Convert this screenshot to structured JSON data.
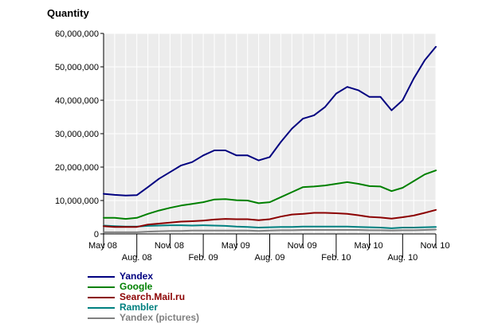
{
  "chart_data": {
    "type": "line",
    "ylabel": "Quantity",
    "xlabel": "",
    "title": "",
    "ylim": [
      0,
      60000000
    ],
    "yticks": [
      {
        "value": 0,
        "label": "0"
      },
      {
        "value": 10000000,
        "label": "10,000,000"
      },
      {
        "value": 20000000,
        "label": "20,000,000"
      },
      {
        "value": 30000000,
        "label": "30,000,000"
      },
      {
        "value": 40000000,
        "label": "40,000,000"
      },
      {
        "value": 50000000,
        "label": "50,000,000"
      },
      {
        "value": 60000000,
        "label": "60,000,000"
      }
    ],
    "xlim": [
      0,
      30
    ],
    "xticks": [
      {
        "value": 0,
        "label": "May 08",
        "row": 1
      },
      {
        "value": 3,
        "label": "Aug. 08",
        "row": 2
      },
      {
        "value": 6,
        "label": "Nov. 08",
        "row": 1
      },
      {
        "value": 9,
        "label": "Feb. 09",
        "row": 2
      },
      {
        "value": 12,
        "label": "May 09",
        "row": 1
      },
      {
        "value": 15,
        "label": "Aug. 09",
        "row": 2
      },
      {
        "value": 18,
        "label": "Nov. 09",
        "row": 1
      },
      {
        "value": 21,
        "label": "Feb. 10",
        "row": 2
      },
      {
        "value": 24,
        "label": "May 10",
        "row": 1
      },
      {
        "value": 27,
        "label": "Aug. 10",
        "row": 2
      },
      {
        "value": 30,
        "label": "Nov. 10",
        "row": 1
      }
    ],
    "grid": true,
    "legend_position": "bottom-left",
    "x": [
      "May 08",
      "Jun. 08",
      "Jul. 08",
      "Aug. 08",
      "Sep. 08",
      "Oct. 08",
      "Nov. 08",
      "Dec. 08",
      "Jan. 09",
      "Feb. 09",
      "Mar. 09",
      "Apr. 09",
      "May 09",
      "Jun. 09",
      "Jul. 09",
      "Aug. 09",
      "Sep. 09",
      "Oct. 09",
      "Nov. 09",
      "Dec. 09",
      "Jan. 10",
      "Feb. 10",
      "Mar. 10",
      "Apr. 10",
      "May 10",
      "Jun. 10",
      "Jul. 10",
      "Aug. 10",
      "Sep. 10",
      "Oct. 10",
      "Nov. 10"
    ],
    "series": [
      {
        "name": "Yandex",
        "color": "#000080",
        "values": [
          12000000,
          11700000,
          11500000,
          11600000,
          14000000,
          16500000,
          18500000,
          20500000,
          21500000,
          23500000,
          25000000,
          25000000,
          23500000,
          23500000,
          22000000,
          23000000,
          27500000,
          31500000,
          34500000,
          35500000,
          38000000,
          42000000,
          44000000,
          43000000,
          41000000,
          41000000,
          37000000,
          40000000,
          46500000,
          52000000,
          56000000
        ]
      },
      {
        "name": "Google",
        "color": "#008000",
        "values": [
          4800000,
          4800000,
          4500000,
          4800000,
          6000000,
          7000000,
          7800000,
          8500000,
          9000000,
          9500000,
          10300000,
          10400000,
          10100000,
          10000000,
          9200000,
          9500000,
          11000000,
          12500000,
          14000000,
          14200000,
          14500000,
          15000000,
          15500000,
          15000000,
          14300000,
          14200000,
          12800000,
          13800000,
          15800000,
          17800000,
          19000000
        ]
      },
      {
        "name": "Search.Mail.ru",
        "color": "#8b0000",
        "values": [
          2300000,
          2100000,
          2100000,
          2100000,
          2800000,
          3100000,
          3400000,
          3700000,
          3800000,
          4000000,
          4300000,
          4500000,
          4400000,
          4400000,
          4100000,
          4400000,
          5200000,
          5800000,
          6000000,
          6300000,
          6300000,
          6200000,
          6000000,
          5600000,
          5100000,
          4900000,
          4600000,
          5000000,
          5500000,
          6300000,
          7200000
        ]
      },
      {
        "name": "Rambler",
        "color": "#008080",
        "values": [
          2500000,
          2300000,
          2200000,
          2200000,
          2400000,
          2500000,
          2600000,
          2600000,
          2500000,
          2600000,
          2500000,
          2400000,
          2200000,
          2100000,
          1900000,
          2000000,
          2100000,
          2100000,
          2200000,
          2200000,
          2200000,
          2200000,
          2200000,
          2100000,
          2000000,
          1900000,
          1700000,
          1900000,
          1900000,
          2000000,
          2100000
        ]
      },
      {
        "name": "Yandex (pictures)",
        "color": "#808080",
        "values": [
          500000,
          500000,
          500000,
          500000,
          700000,
          800000,
          900000,
          900000,
          1000000,
          1000000,
          1000000,
          1000000,
          1000000,
          1000000,
          900000,
          1000000,
          1100000,
          1100000,
          1200000,
          1200000,
          1200000,
          1200000,
          1200000,
          1200000,
          1100000,
          1100000,
          1000000,
          1100000,
          1100000,
          1200000,
          1300000
        ]
      }
    ]
  }
}
